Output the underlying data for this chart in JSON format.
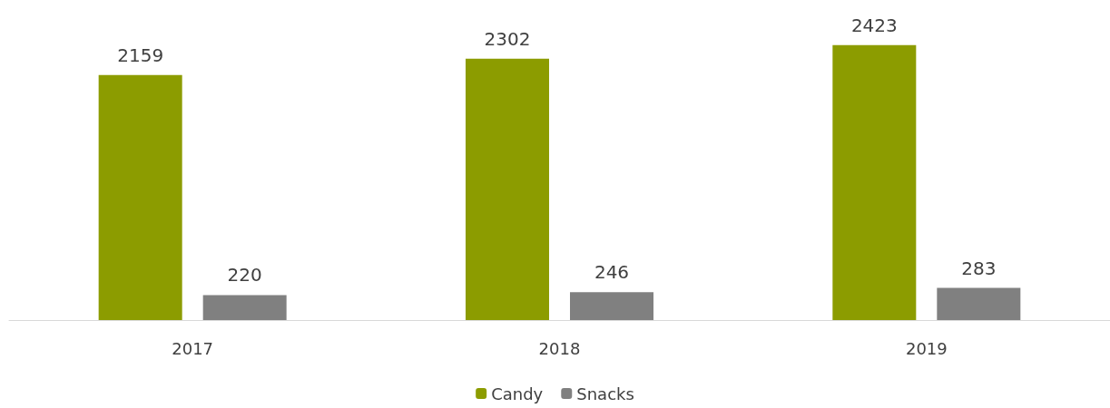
{
  "chart_data": {
    "type": "bar",
    "categories": [
      "2017",
      "2018",
      "2019"
    ],
    "series": [
      {
        "name": "Candy",
        "color": "#8c9c00",
        "values": [
          2159,
          2302,
          2423
        ]
      },
      {
        "name": "Snacks",
        "color": "#808080",
        "values": [
          220,
          246,
          283
        ]
      }
    ],
    "data_labels": true,
    "legend": "bottom"
  }
}
